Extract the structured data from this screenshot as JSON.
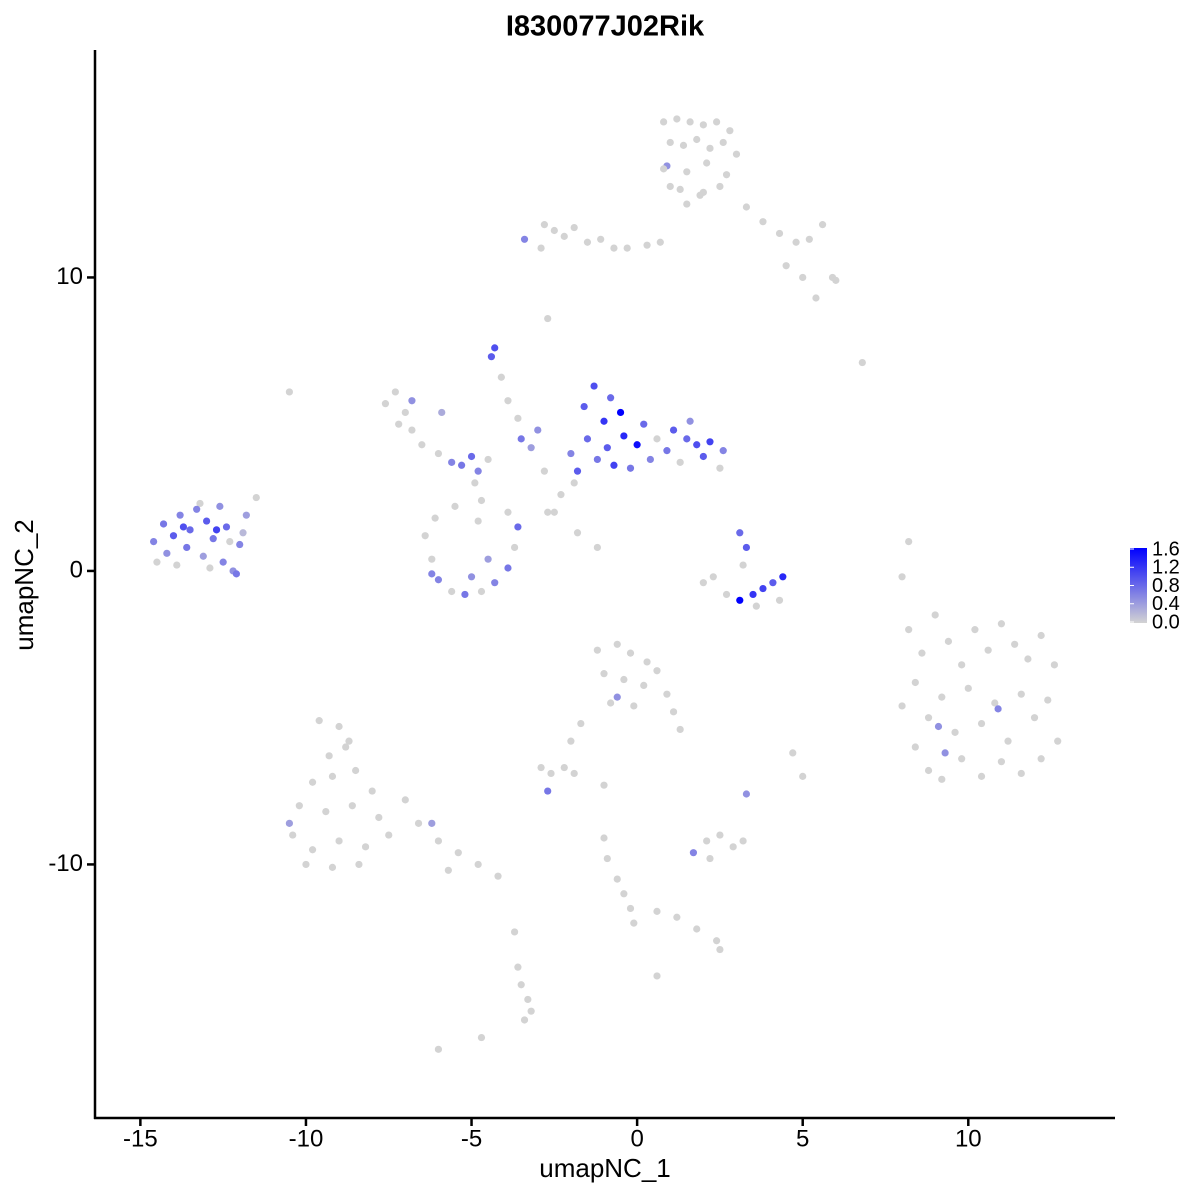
{
  "chart_data": {
    "type": "scatter",
    "title": "I830077J02Rik",
    "x_label": "umapNC_1",
    "y_label": "umapNC_2",
    "xlim": [
      -16.37,
      14.43
    ],
    "ylim": [
      -18.64,
      17.75
    ],
    "xticks": [
      -15,
      -10,
      -5,
      0,
      5,
      10
    ],
    "yticks": [
      -10,
      0,
      10
    ],
    "low_color": "#d3d3d3",
    "high_color": "#0000ff",
    "colorlim": [
      0,
      1.6
    ],
    "colorticks": [
      {
        "value": 0,
        "label": "0.0"
      },
      0.4,
      0.8,
      1.2,
      1.6
    ],
    "x": [
      0.8,
      1.2,
      1.6,
      2.0,
      2.4,
      2.8,
      1.0,
      1.4,
      1.8,
      2.2,
      2.6,
      3.0,
      0.9,
      1.5,
      2.1,
      2.7,
      1.3,
      1.9,
      2.5,
      3.3,
      3.8,
      4.3,
      4.8,
      5.2,
      5.6,
      5.9,
      4.5,
      5.0,
      5.4,
      6.0,
      0.8,
      1.0,
      1.5,
      2.0,
      -2.8,
      -2.5,
      -2.2,
      -1.9,
      -1.5,
      -1.1,
      -0.7,
      -0.3,
      0.3,
      0.7,
      -3.4,
      -2.9,
      -2.7,
      -14.5,
      -13.9,
      -13.2,
      -12.9,
      -12.3,
      -14.6,
      -14.3,
      -14.2,
      -14.0,
      -13.8,
      -13.6,
      -13.5,
      -13.3,
      -13.1,
      -13.0,
      -12.8,
      -12.6,
      -12.5,
      -12.4,
      -12.2,
      -12.0,
      -11.8,
      -11.5,
      -12.1,
      -13.7,
      -12.7,
      -11.9,
      -7.6,
      -7.3,
      -7.0,
      -7.2,
      -6.8,
      -6.5,
      -6.8,
      -6.0,
      -5.6,
      -5.3,
      -5.0,
      -4.8,
      -4.5,
      -5.9,
      -4.3,
      -4.4,
      -4.1,
      -3.9,
      -3.6,
      -3.5,
      -3.2,
      -3.0,
      -4.9,
      -4.7,
      -2.8,
      -6.4,
      -6.2,
      -6.0,
      -5.6,
      -5.2,
      -4.7,
      -4.3,
      -3.9,
      -3.7,
      -3.6,
      -3.9,
      -6.1,
      -5.5,
      -4.8,
      -6.2,
      -5.0,
      -4.5,
      -2.3,
      -2.5,
      -1.9,
      0.6,
      1.3,
      2.5,
      -2.0,
      -1.8,
      -1.6,
      -1.5,
      -1.3,
      -1.2,
      -1.0,
      -0.9,
      -0.8,
      -0.7,
      -0.5,
      -0.4,
      -0.2,
      0.0,
      0.2,
      0.4,
      0.9,
      1.1,
      1.5,
      1.8,
      2.0,
      2.2,
      2.6,
      1.6,
      3.2,
      2.3,
      2.7,
      4.3,
      3.6,
      2.0,
      3.1,
      3.3,
      3.1,
      3.5,
      3.8,
      4.1,
      4.4,
      8.2,
      8.6,
      9.0,
      9.4,
      9.8,
      10.2,
      10.6,
      11.0,
      11.4,
      11.8,
      12.2,
      12.6,
      8.0,
      8.4,
      8.8,
      9.2,
      9.6,
      10.0,
      10.4,
      10.8,
      11.2,
      11.6,
      12.0,
      12.4,
      12.7,
      8.4,
      8.8,
      9.2,
      9.8,
      10.4,
      11.0,
      11.6,
      12.2,
      9.1,
      10.9,
      9.3,
      -9.6,
      -9.0,
      -8.7,
      -9.3,
      -8.5,
      -9.8,
      -8.0,
      -10.2,
      -9.4,
      -8.6,
      -7.8,
      -10.4,
      -9.8,
      -9.0,
      -8.2,
      -7.5,
      -10.0,
      -9.2,
      -8.4,
      -7.0,
      -6.6,
      -6.0,
      -5.4,
      -4.8,
      -4.2,
      -5.7,
      -8.8,
      -9.2,
      -10.5,
      -6.2,
      -1.2,
      -0.6,
      -0.2,
      0.3,
      -1.0,
      -0.4,
      0.2,
      0.6,
      0.9,
      1.1,
      1.3,
      -0.8,
      -0.1,
      -0.6,
      -2.9,
      -2.6,
      -2.2,
      -1.9,
      -2.0,
      -1.7,
      -2.7,
      2.1,
      2.5,
      2.9,
      3.2,
      2.2,
      1.7,
      -1.0,
      -0.9,
      -0.6,
      -0.4,
      -0.2,
      -0.1,
      0.6,
      1.2,
      1.8,
      2.4,
      2.5,
      0.6,
      -3.6,
      -3.5,
      -3.3,
      -3.2,
      -3.4,
      -3.7,
      -4.7,
      -6.0,
      -10.5,
      6.8,
      8.2,
      8.0,
      4.7,
      5.0,
      -1.0,
      -2.7,
      -1.8,
      -1.2,
      3.3
    ],
    "values": [
      15.3,
      15.4,
      15.3,
      15.2,
      15.3,
      15.0,
      14.6,
      14.5,
      14.7,
      14.4,
      14.6,
      14.2,
      13.8,
      13.6,
      13.9,
      13.5,
      13.0,
      12.8,
      13.1,
      12.4,
      11.9,
      11.5,
      11.2,
      11.3,
      11.8,
      10.0,
      10.4,
      10.0,
      9.3,
      9.9,
      13.7,
      13.1,
      12.5,
      12.9,
      11.8,
      11.6,
      11.4,
      11.7,
      11.2,
      11.3,
      11.0,
      11.0,
      11.1,
      11.2,
      11.3,
      11.0,
      8.6,
      0.3,
      0.2,
      2.3,
      0.1,
      1.0,
      1.0,
      1.6,
      0.6,
      1.2,
      1.9,
      0.8,
      1.4,
      2.1,
      0.5,
      1.7,
      1.1,
      2.2,
      0.3,
      1.5,
      0.0,
      0.9,
      1.9,
      2.5,
      -0.1,
      1.5,
      1.4,
      1.3,
      5.7,
      6.1,
      5.4,
      5.0,
      4.8,
      4.3,
      5.8,
      4.0,
      3.7,
      3.6,
      3.9,
      3.4,
      3.8,
      5.4,
      7.6,
      7.3,
      6.6,
      5.8,
      5.2,
      4.5,
      4.2,
      4.8,
      3.0,
      2.4,
      3.4,
      1.2,
      0.4,
      -0.3,
      -0.7,
      -0.8,
      -0.7,
      -0.4,
      0.1,
      0.8,
      1.5,
      2.0,
      1.8,
      2.2,
      1.7,
      -0.1,
      -0.2,
      0.4,
      2.6,
      2.0,
      3.0,
      4.5,
      3.7,
      3.5,
      4.0,
      3.4,
      5.6,
      4.5,
      6.3,
      3.8,
      5.1,
      4.2,
      5.9,
      3.6,
      5.4,
      4.6,
      3.5,
      4.3,
      5.0,
      3.8,
      4.1,
      4.8,
      4.5,
      4.3,
      3.9,
      4.4,
      4.1,
      5.1,
      0.2,
      -0.2,
      -0.8,
      -1.0,
      -1.2,
      -0.4,
      1.3,
      0.8,
      -1.0,
      -0.8,
      -0.6,
      -0.4,
      -0.2,
      -2.0,
      -2.8,
      -1.5,
      -2.4,
      -3.2,
      -2.0,
      -2.7,
      -1.8,
      -2.5,
      -3.0,
      -2.2,
      -3.2,
      -4.6,
      -3.8,
      -5.0,
      -4.3,
      -5.5,
      -4.0,
      -5.2,
      -4.5,
      -5.8,
      -4.2,
      -5.0,
      -4.4,
      -5.8,
      -6.0,
      -6.8,
      -7.1,
      -6.4,
      -7.0,
      -6.5,
      -6.9,
      -6.4,
      -5.3,
      -4.7,
      -6.2,
      -5.1,
      -5.3,
      -5.8,
      -6.3,
      -6.8,
      -7.2,
      -7.5,
      -8.0,
      -8.2,
      -8.0,
      -8.4,
      -9.0,
      -9.5,
      -9.2,
      -9.4,
      -9.0,
      -10.0,
      -10.1,
      -10.0,
      -7.8,
      -8.6,
      -9.2,
      -9.6,
      -10.0,
      -10.4,
      -10.2,
      -6.0,
      -7.0,
      -8.6,
      -8.6,
      -2.7,
      -2.5,
      -2.8,
      -3.1,
      -3.5,
      -3.7,
      -3.9,
      -3.4,
      -4.2,
      -4.8,
      -5.4,
      -4.5,
      -4.6,
      -4.3,
      -6.7,
      -6.9,
      -6.7,
      -6.9,
      -5.8,
      -5.2,
      -7.5,
      -9.2,
      -9.0,
      -9.4,
      -9.2,
      -9.8,
      -9.6,
      -9.1,
      -9.8,
      -10.5,
      -11.0,
      -11.5,
      -12.0,
      -11.6,
      -11.8,
      -12.2,
      -12.6,
      -12.9,
      -13.8,
      -13.5,
      -14.1,
      -14.6,
      -15.0,
      -15.3,
      -12.3,
      -15.9,
      -16.3,
      6.1,
      7.1,
      1.0,
      -0.2,
      -6.2,
      -7.0,
      -7.3,
      2.0,
      1.3,
      0.8,
      -7.6
    ],
    "color_values": [
      0,
      0,
      0,
      0,
      0,
      0,
      0,
      0,
      0,
      0,
      0,
      0,
      0.5,
      0,
      0,
      0,
      0,
      0,
      0,
      0,
      0,
      0,
      0,
      0,
      0,
      0,
      0,
      0,
      0,
      0,
      0,
      0,
      0,
      0,
      0,
      0,
      0,
      0,
      0,
      0,
      0,
      0,
      0,
      0,
      0.6,
      0,
      0,
      0,
      0,
      0,
      0,
      0,
      0.6,
      0.7,
      0.5,
      0.9,
      0.6,
      0.7,
      0.8,
      0.6,
      0.4,
      0.9,
      0.7,
      0.5,
      0.6,
      0.8,
      0.5,
      0.6,
      0.4,
      0,
      0.7,
      1.0,
      1.1,
      0.2,
      0,
      0,
      0,
      0,
      0,
      0,
      0.5,
      0,
      0.6,
      0.7,
      0.8,
      0.6,
      0,
      0.3,
      1.0,
      0.9,
      0,
      0,
      0,
      0.7,
      0.4,
      0.5,
      0,
      0,
      0,
      0,
      0,
      0.6,
      0,
      0.7,
      0,
      0.6,
      0.7,
      0,
      0.8,
      0,
      0,
      0,
      0,
      0.6,
      0.5,
      0.4,
      0,
      0,
      0,
      0,
      0,
      0,
      0.6,
      0.9,
      0.9,
      0.8,
      1.0,
      0.7,
      1.2,
      0.9,
      0.8,
      1.1,
      1.6,
      1.3,
      0.7,
      1.5,
      0.8,
      0.6,
      0.7,
      0.9,
      0.8,
      1.0,
      0.9,
      1.1,
      0.6,
      0.5,
      0,
      0,
      0,
      0,
      0,
      0,
      0.8,
      0.9,
      1.6,
      1.2,
      1.1,
      0.9,
      1.3,
      0,
      0,
      0,
      0,
      0,
      0,
      0,
      0,
      0,
      0,
      0,
      0,
      0,
      0,
      0,
      0,
      0,
      0,
      0,
      0,
      0,
      0,
      0,
      0,
      0,
      0,
      0,
      0,
      0,
      0,
      0,
      0,
      0,
      0.5,
      0.6,
      0.5,
      0,
      0,
      0,
      0,
      0,
      0,
      0,
      0,
      0,
      0,
      0,
      0,
      0,
      0,
      0,
      0,
      0,
      0,
      0,
      0,
      0,
      0,
      0,
      0,
      0,
      0,
      0,
      0,
      0.4,
      0.4,
      0,
      0,
      0,
      0,
      0,
      0,
      0,
      0,
      0,
      0,
      0,
      0,
      0,
      0.5,
      0,
      0,
      0,
      0,
      0,
      0,
      0.7,
      0,
      0,
      0,
      0,
      0,
      0.6,
      0,
      0,
      0,
      0,
      0,
      0,
      0,
      0,
      0,
      0,
      0,
      0,
      0,
      0,
      0,
      0,
      0,
      0,
      0,
      0,
      0,
      0,
      0,
      0,
      0,
      0,
      0,
      0,
      0,
      0,
      0.5
    ]
  }
}
